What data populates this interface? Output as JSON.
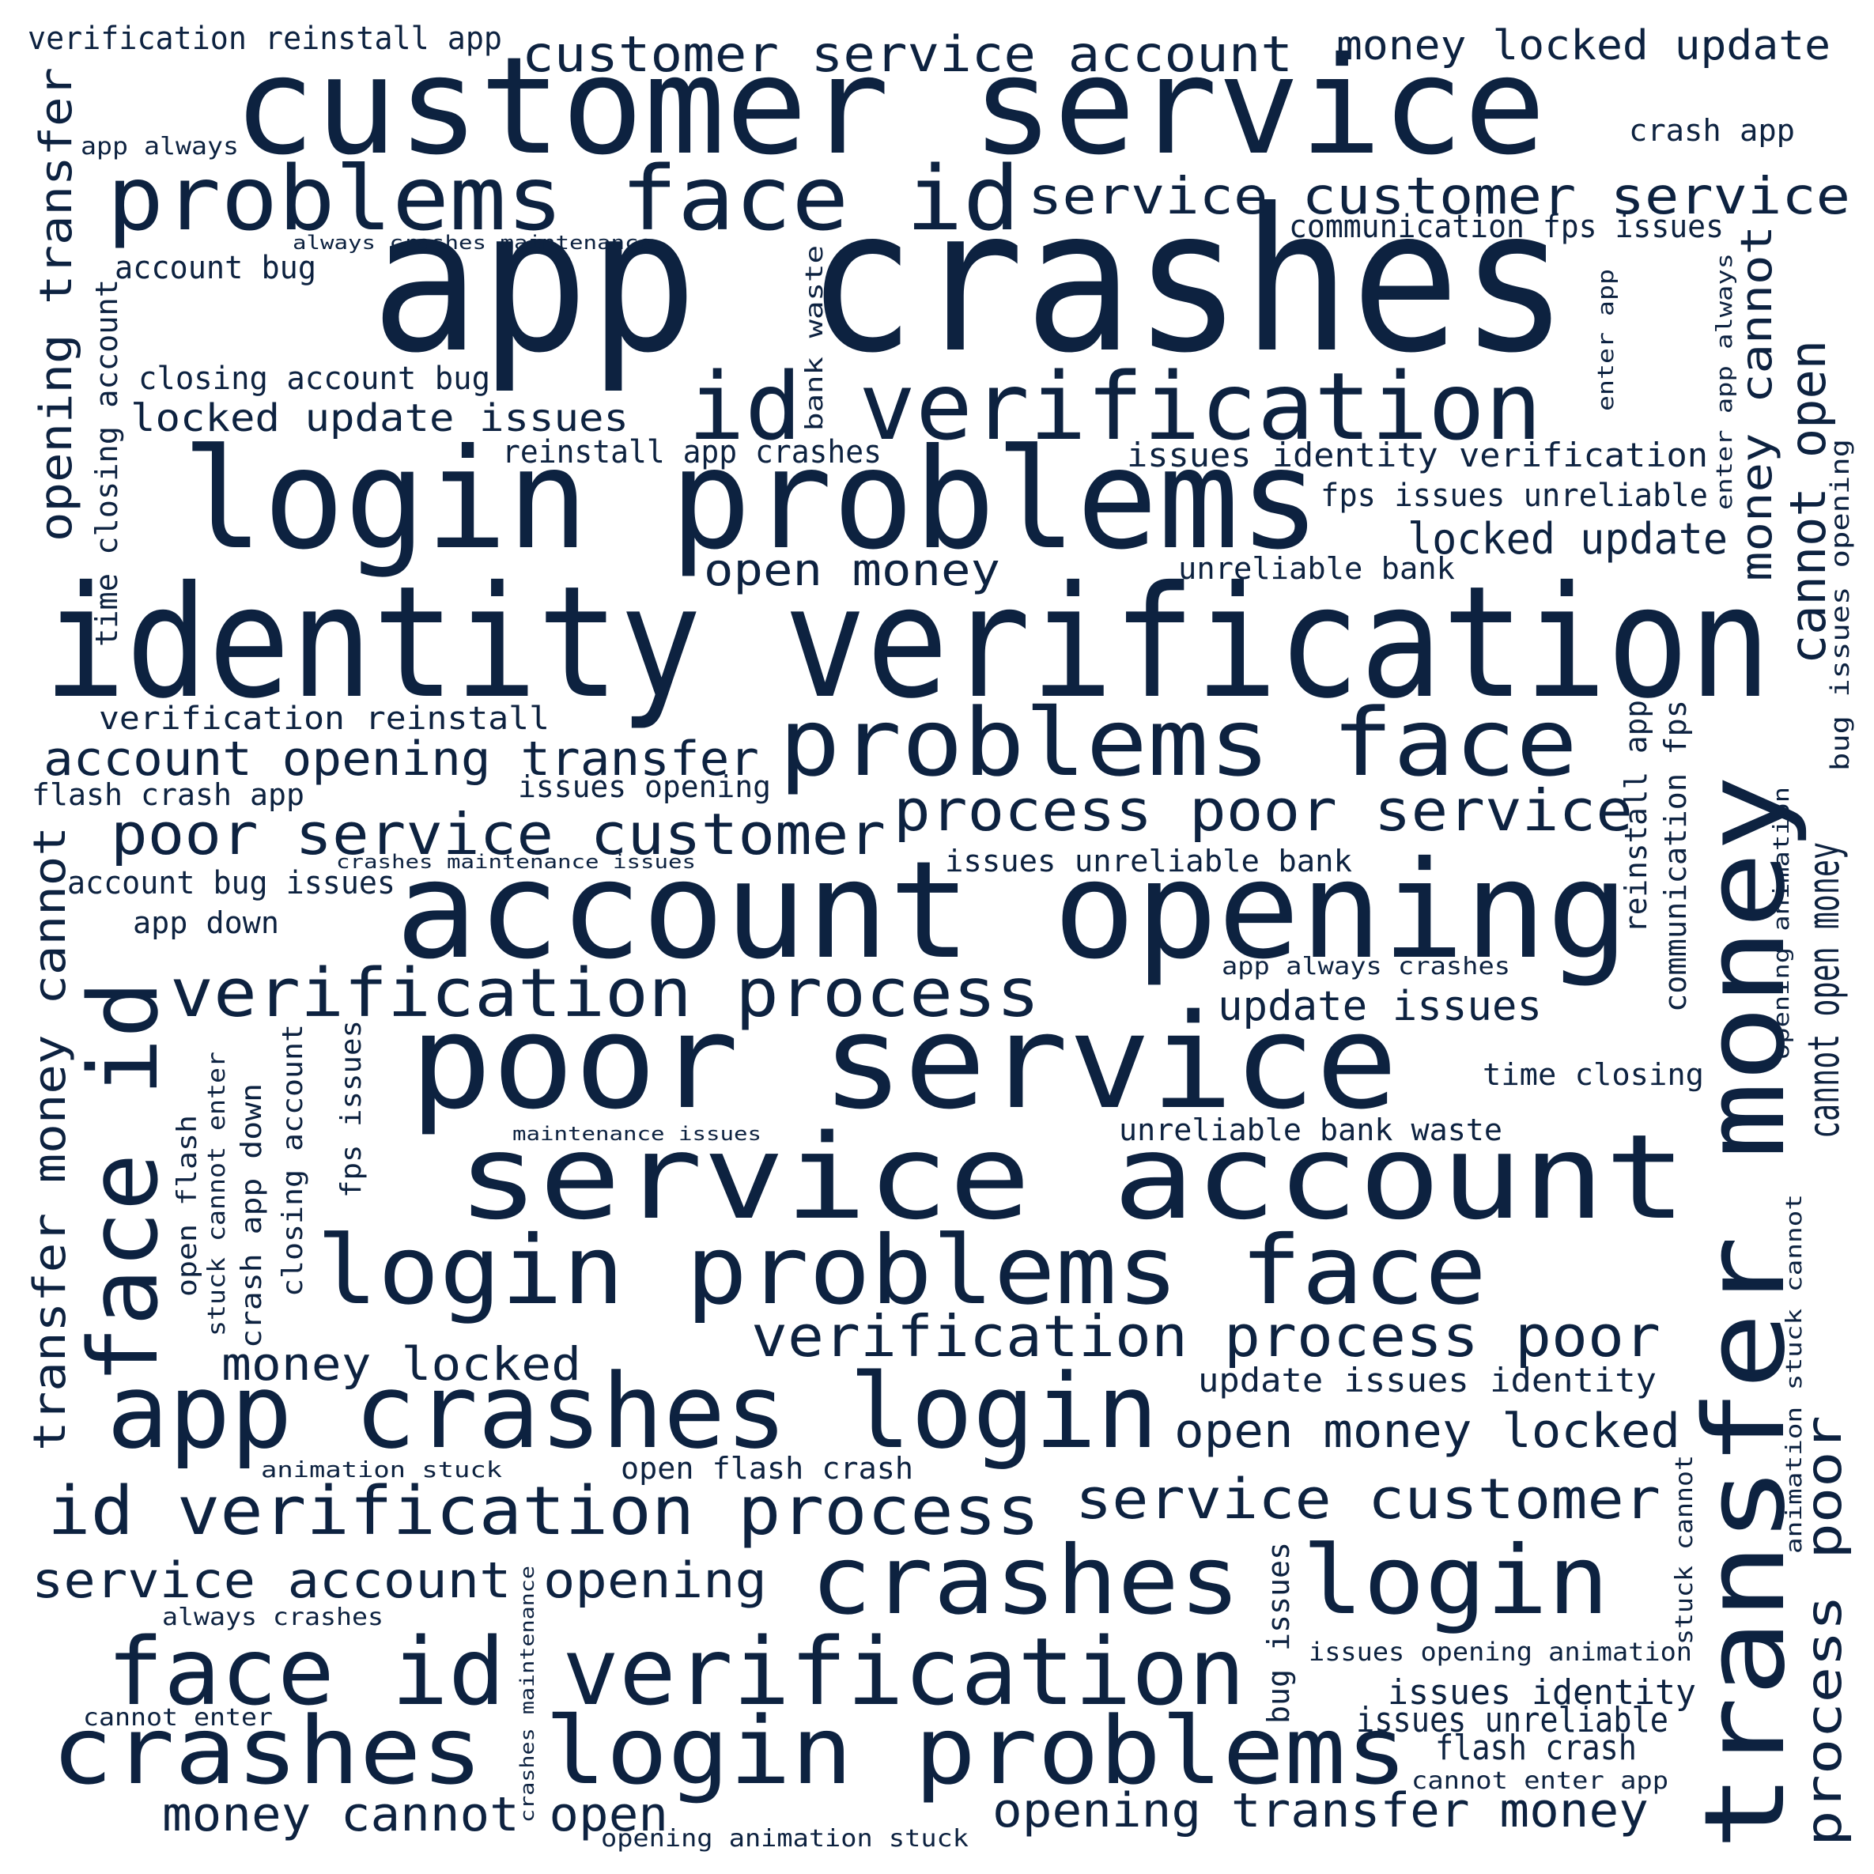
{
  "background_color": "#ffffff",
  "text_color": "#0d2240",
  "words": [
    "app crashes",
    "customer service",
    "identity verification",
    "login problems",
    "transfer money",
    "account opening",
    "poor service",
    "service account",
    "login problems face",
    "face id",
    "app crashes login",
    "problems face id",
    "id verification",
    "problems face",
    "face id verification",
    "crashes login problems",
    "id verification process",
    "crashes login",
    "verification process",
    "verification process poor",
    "service customer service",
    "customer service account",
    "poor service customer",
    "process poor service",
    "service customer",
    "account opening transfer",
    "money locked update",
    "service account opening",
    "process poor",
    "cannot open",
    "open money locked",
    "opening transfer money",
    "opening transfer",
    "money cannot open",
    "money locked",
    "open money",
    "locked update",
    "locked update issues",
    "transfer money cannot",
    "money cannot",
    "cannot open money",
    "update issues",
    "issues identity",
    "issues unreliable",
    "flash crash",
    "update issues identity",
    "issues identity verification",
    "verification reinstall app",
    "verification reinstall",
    "reinstall app crashes",
    "fps issues unreliable",
    "communication fps issues",
    "closing account bug",
    "account bug",
    "account bug issues",
    "issues opening",
    "flash crash app",
    "app down",
    "crash app",
    "time closing",
    "unreliable bank",
    "unreliable bank waste",
    "issues unreliable bank",
    "open flash crash",
    "animation stuck",
    "opening animation stuck",
    "issues opening animation",
    "cannot enter app",
    "cannot enter",
    "always crashes",
    "app always crashes",
    "always crashes maintenance",
    "crashes maintenance issues",
    "maintenance issues",
    "app always",
    "bank waste",
    "enter app",
    "enter app always",
    "bug issues opening",
    "reinstall app",
    "communication fps",
    "opening animation",
    "animation stuck cannot",
    "stuck cannot",
    "bug issues",
    "crashes maintenance",
    "closing account",
    "fps issues",
    "crash app down",
    "stuck cannot enter",
    "open flash",
    "time closing account"
  ]
}
